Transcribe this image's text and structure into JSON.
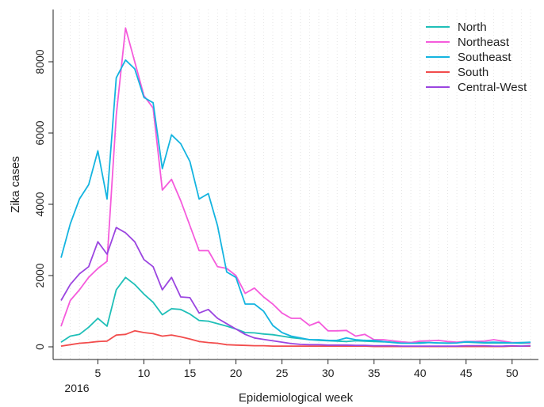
{
  "chart_data": {
    "type": "line",
    "title": "",
    "xlabel": "Epidemiological week",
    "ylabel": "Zika cases",
    "year_label": "2016",
    "xlim": [
      1,
      52
    ],
    "ylim": [
      0,
      9000
    ],
    "x_ticks": [
      5,
      10,
      15,
      20,
      25,
      30,
      35,
      40,
      45,
      50
    ],
    "y_ticks": [
      0,
      2000,
      4000,
      6000,
      8000
    ],
    "grid": "faint dotted vertical lines at each week",
    "legend_position": "top-right",
    "x": [
      1,
      2,
      3,
      4,
      5,
      6,
      7,
      8,
      9,
      10,
      11,
      12,
      13,
      14,
      15,
      16,
      17,
      18,
      19,
      20,
      21,
      22,
      23,
      24,
      25,
      26,
      27,
      28,
      29,
      30,
      31,
      32,
      33,
      34,
      35,
      36,
      37,
      38,
      39,
      40,
      41,
      42,
      43,
      44,
      45,
      46,
      47,
      48,
      49,
      50,
      51,
      52
    ],
    "series": [
      {
        "name": "North",
        "color": "#1fbfb8",
        "values": [
          130,
          300,
          350,
          550,
          800,
          580,
          1600,
          1950,
          1750,
          1480,
          1250,
          900,
          1070,
          1050,
          920,
          740,
          720,
          650,
          580,
          500,
          400,
          390,
          360,
          340,
          300,
          260,
          230,
          200,
          180,
          170,
          160,
          150,
          170,
          160,
          150,
          140,
          130,
          130,
          120,
          120,
          120,
          110,
          110,
          120,
          130,
          120,
          110,
          110,
          110,
          110,
          100,
          100
        ]
      },
      {
        "name": "Northeast",
        "color": "#f55bdc",
        "values": [
          580,
          1300,
          1600,
          1950,
          2200,
          2400,
          6500,
          8950,
          8000,
          7050,
          6700,
          4400,
          4700,
          4100,
          3400,
          2700,
          2700,
          2250,
          2200,
          2000,
          1500,
          1650,
          1400,
          1200,
          950,
          800,
          800,
          600,
          700,
          450,
          450,
          460,
          300,
          350,
          200,
          200,
          170,
          140,
          120,
          160,
          170,
          180,
          150,
          130,
          150,
          150,
          160,
          200,
          160,
          120,
          120,
          110
        ]
      },
      {
        "name": "Southeast",
        "color": "#14b4e0",
        "values": [
          2500,
          3450,
          4150,
          4550,
          5500,
          4150,
          7550,
          8050,
          7800,
          7000,
          6850,
          5000,
          5950,
          5700,
          5200,
          4150,
          4300,
          3400,
          2100,
          1950,
          1200,
          1200,
          1000,
          600,
          400,
          300,
          250,
          200,
          200,
          180,
          180,
          250,
          200,
          180,
          180,
          150,
          120,
          100,
          100,
          100,
          120,
          110,
          100,
          110,
          140,
          130,
          120,
          130,
          120,
          110,
          120,
          130
        ]
      },
      {
        "name": "South",
        "color": "#f24c4c",
        "values": [
          20,
          60,
          100,
          120,
          150,
          160,
          330,
          350,
          450,
          400,
          370,
          300,
          330,
          280,
          220,
          150,
          120,
          100,
          60,
          50,
          40,
          30,
          30,
          20,
          20,
          20,
          20,
          20,
          20,
          20,
          20,
          20,
          20,
          20,
          10,
          10,
          10,
          10,
          10,
          10,
          10,
          10,
          10,
          10,
          10,
          10,
          10,
          10,
          10,
          20,
          20,
          20
        ]
      },
      {
        "name": "Central-West",
        "color": "#9b45e0",
        "values": [
          1300,
          1750,
          2050,
          2250,
          2950,
          2600,
          3350,
          3200,
          2950,
          2450,
          2250,
          1600,
          1950,
          1400,
          1380,
          950,
          1050,
          800,
          650,
          500,
          350,
          250,
          210,
          170,
          130,
          90,
          70,
          60,
          60,
          50,
          50,
          50,
          40,
          40,
          30,
          30,
          30,
          20,
          20,
          20,
          20,
          20,
          20,
          20,
          30,
          30,
          30,
          20,
          20,
          30,
          20,
          30
        ]
      }
    ]
  }
}
